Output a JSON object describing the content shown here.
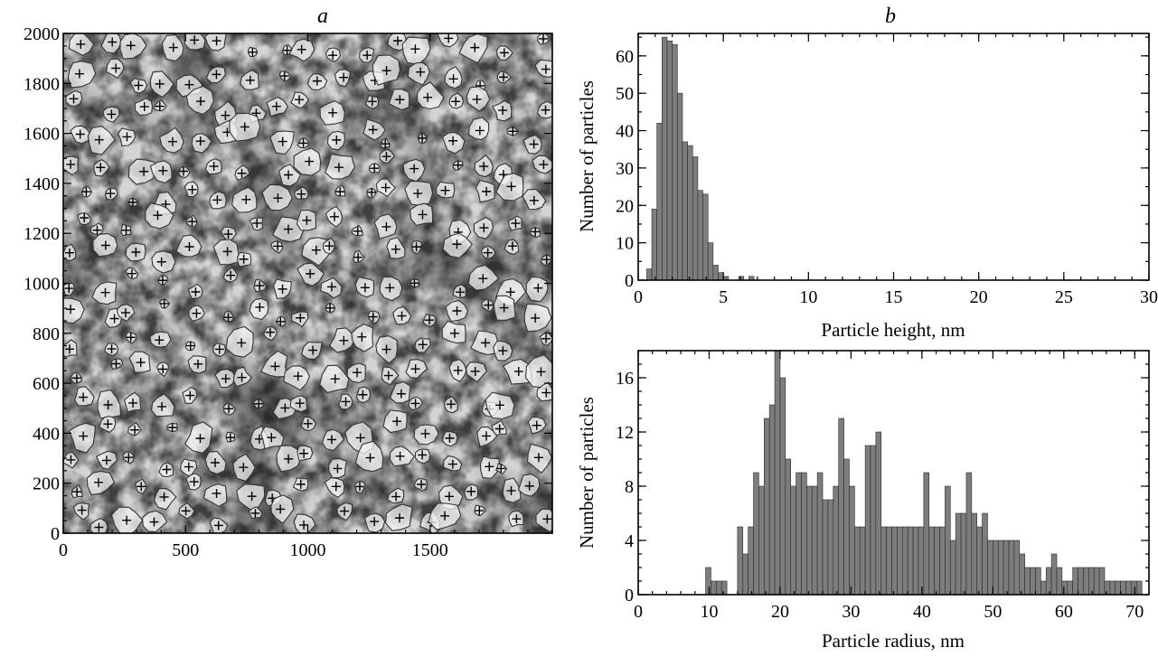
{
  "chart_data": [
    {
      "panel": "a",
      "type": "heatmap",
      "xlim": [
        0,
        2000
      ],
      "ylim": [
        0,
        2000
      ],
      "x_ticks": [
        0,
        500,
        1000,
        1500
      ],
      "y_ticks": [
        0,
        200,
        400,
        600,
        800,
        1000,
        1200,
        1400,
        1600,
        1800,
        2000
      ],
      "xlabel": "",
      "ylabel": "",
      "grid": false
    },
    {
      "panel": "b",
      "type": "bar",
      "xlabel": "Particle height, nm",
      "ylabel": "Number of particles",
      "xlim": [
        0,
        30
      ],
      "ylim": [
        0,
        66
      ],
      "x_ticks": [
        0,
        5,
        10,
        15,
        20,
        25,
        30
      ],
      "y_ticks": [
        0,
        10,
        20,
        30,
        40,
        50,
        60
      ],
      "bin_width": 0.3,
      "x": [
        0.5,
        0.8,
        1.1,
        1.4,
        1.7,
        2.0,
        2.3,
        2.6,
        2.9,
        3.2,
        3.5,
        3.8,
        4.1,
        4.4,
        4.7,
        5.0,
        5.3,
        5.6,
        5.9,
        6.2,
        6.5,
        6.8
      ],
      "values": [
        3,
        19,
        42,
        65,
        64,
        63,
        50,
        37,
        36,
        33,
        24,
        23,
        10,
        4,
        2,
        1,
        0,
        0,
        1,
        0,
        1,
        0
      ],
      "grid": false
    },
    {
      "type": "bar",
      "xlabel": "Particle radius, nm",
      "ylabel": "Number of particles",
      "xlim": [
        0,
        72
      ],
      "ylim": [
        0,
        18
      ],
      "x_ticks": [
        0,
        10,
        20,
        30,
        40,
        50,
        60,
        70
      ],
      "y_ticks": [
        0,
        4,
        8,
        12,
        16
      ],
      "bin_width": 0.75,
      "x": [
        9.5,
        10.25,
        11.0,
        11.75,
        12.5,
        13.25,
        14.0,
        14.75,
        15.5,
        16.25,
        17.0,
        17.75,
        18.5,
        19.25,
        20.0,
        20.75,
        21.5,
        22.25,
        23.0,
        23.75,
        24.5,
        25.25,
        26.0,
        26.75,
        27.5,
        28.25,
        29.0,
        29.75,
        30.5,
        31.25,
        32.0,
        32.75,
        33.5,
        34.25,
        35.0,
        35.75,
        36.5,
        37.25,
        38.0,
        38.75,
        39.5,
        40.25,
        41.0,
        41.75,
        42.5,
        43.25,
        44.0,
        44.75,
        45.5,
        46.25,
        47.0,
        47.75,
        48.5,
        49.25,
        50.0,
        50.75,
        51.5,
        52.25,
        53.0,
        53.75,
        54.5,
        55.25,
        56.0,
        56.75,
        57.5,
        58.25,
        59.0,
        59.75,
        60.5,
        61.25,
        62.0,
        62.75,
        63.5,
        64.25,
        65.0,
        65.75,
        66.5,
        67.25,
        68.0,
        68.75,
        69.5,
        70.25,
        71.0
      ],
      "values": [
        2,
        1,
        1,
        1,
        0,
        0,
        5,
        3,
        5,
        9,
        8,
        13,
        14,
        18,
        16,
        10,
        8,
        9,
        9,
        8,
        8,
        9,
        7,
        7,
        8,
        13,
        10,
        8,
        5,
        5,
        11,
        11,
        12,
        5,
        5,
        5,
        5,
        5,
        5,
        5,
        5,
        9,
        5,
        5,
        5,
        8,
        4,
        6,
        6,
        9,
        6,
        5,
        6,
        4,
        4,
        4,
        4,
        4,
        4,
        3,
        2,
        2,
        2,
        1,
        2,
        3,
        2,
        1,
        1,
        2,
        2,
        2,
        2,
        2,
        2,
        1,
        1,
        1,
        1,
        1,
        1,
        1,
        0
      ],
      "grid": false
    }
  ]
}
